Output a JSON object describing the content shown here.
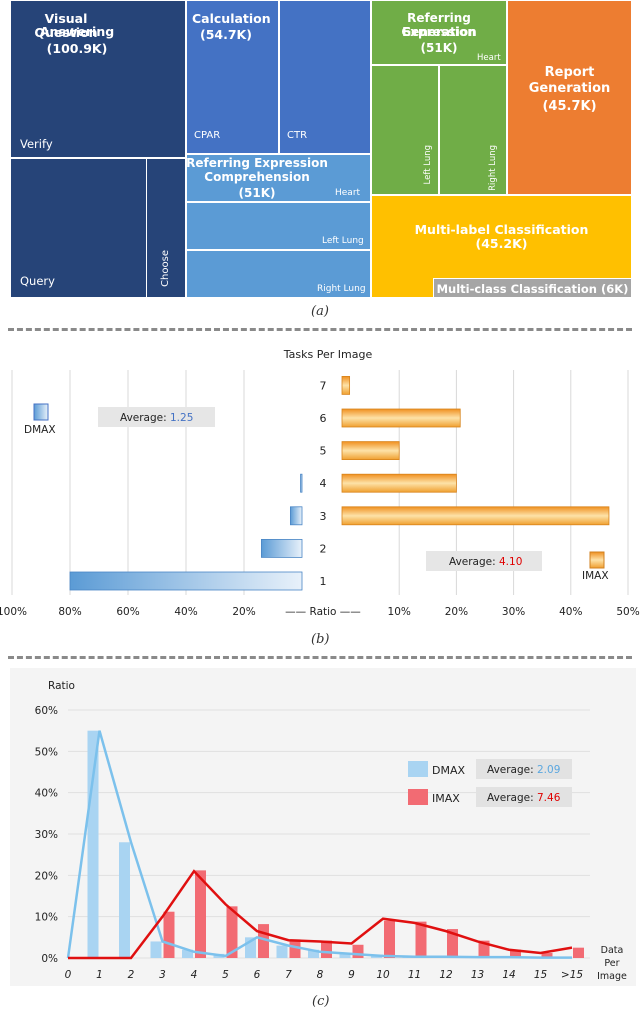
{
  "treemap": {
    "vqa": {
      "title_line1": "Visual Question",
      "title_line2": "Answering",
      "count": "(100.9K)",
      "verify": "Verify",
      "query": "Query",
      "choose": "Choose"
    },
    "calc": {
      "title": "Calculation",
      "count": "(54.7K)",
      "cpar": "CPAR",
      "ctr": "CTR"
    },
    "rec": {
      "title_line1": "Referring Expression",
      "title_line2": "Comprehension",
      "count": "(51K)",
      "heart": "Heart",
      "left_lung": "Left Lung",
      "right_lung": "Right Lung"
    },
    "reg": {
      "title_line1": "Referring Expression",
      "title_line2": "Generation",
      "count": "(51K)",
      "heart": "Heart",
      "left_lung": "Left Lung",
      "right_lung": "Right Lung"
    },
    "report": {
      "title_line1": "Report",
      "title_line2": "Generation",
      "count": "(45.7K)"
    },
    "mlc": {
      "title": "Multi-label Classification",
      "count": "(45.2K)"
    },
    "mcc": {
      "title": "Multi-class Classification (6K)"
    },
    "colors": {
      "vqa": "#264478",
      "calc": "#4472c4",
      "rec": "#5b9bd5",
      "reg": "#70ad47",
      "report": "#ed7d31",
      "mlc": "#ffc000",
      "mcc": "#a5a5a5"
    }
  },
  "captions": {
    "a": "(a)",
    "b": "(b)",
    "c": "(c)"
  },
  "chart_data": [
    {
      "type": "bar",
      "orientation": "horizontal-butterfly",
      "title": "Tasks Per Image",
      "categories": [
        "1",
        "2",
        "3",
        "4",
        "5",
        "6",
        "7"
      ],
      "series": [
        {
          "name": "DMAX",
          "side": "left",
          "values": [
            0.8,
            0.14,
            0.04,
            0.005,
            0,
            0,
            0
          ],
          "average_label": "Average: ",
          "average_value": "1.25"
        },
        {
          "name": "IMAX",
          "side": "right",
          "values": [
            0,
            0,
            0.4667,
            0.2,
            0.1,
            0.2067,
            0.0133
          ],
          "average_label": "Average: ",
          "average_value": "4.10"
        }
      ],
      "left_ticks": [
        "100%",
        "80%",
        "60%",
        "40%",
        "20%"
      ],
      "right_ticks": [
        "10%",
        "20%",
        "30%",
        "40%",
        "50%"
      ],
      "center_label": "—— Ratio ——",
      "left_xlim": [
        0,
        1.0
      ],
      "right_xlim": [
        0,
        0.5
      ],
      "colors": {
        "dmax": "#5b9bd5",
        "imax": "#f0a030",
        "avg_dmax": "#4472c4",
        "avg_imax": "#e00000"
      }
    },
    {
      "type": "bar",
      "title": "",
      "ylabel": "Ratio",
      "xlabel": "Data Per Image",
      "xlabel_lines": [
        "Data",
        "Per",
        "Image"
      ],
      "categories": [
        "0",
        "1",
        "2",
        "3",
        "4",
        "5",
        "6",
        "7",
        "8",
        "9",
        "10",
        "11",
        "12",
        "13",
        "14",
        "15",
        ">15"
      ],
      "ylim": [
        0,
        0.6
      ],
      "yticks": [
        "0%",
        "10%",
        "20%",
        "30%",
        "40%",
        "50%",
        "60%"
      ],
      "series": [
        {
          "name": "DMAX",
          "values": [
            0,
            0.55,
            0.28,
            0.04,
            0.02,
            0.01,
            0.05,
            0.03,
            0.02,
            0.01,
            0.005,
            0.003,
            0.003,
            0.002,
            0.002,
            0.001,
            0.001
          ],
          "line": [
            0,
            0.55,
            0.28,
            0.04,
            0.015,
            0.005,
            0.05,
            0.03,
            0.015,
            0.01,
            0.005,
            0.003,
            0.003,
            0.002,
            0.002,
            0.001,
            0.001
          ],
          "average_label": "Average: ",
          "average_value": "2.09"
        },
        {
          "name": "IMAX",
          "values": [
            0,
            0,
            0,
            0.112,
            0.212,
            0.125,
            0.082,
            0.045,
            0.042,
            0.032,
            0.09,
            0.088,
            0.07,
            0.042,
            0.02,
            0.012,
            0.025
          ],
          "line": [
            0,
            0,
            0,
            0.1,
            0.21,
            0.13,
            0.065,
            0.043,
            0.04,
            0.035,
            0.095,
            0.085,
            0.065,
            0.04,
            0.02,
            0.012,
            0.025
          ],
          "average_label": "Average: ",
          "average_value": "7.46"
        }
      ],
      "colors": {
        "dmax_bar": "#a9d4f2",
        "dmax_line": "#7cc1ec",
        "imax_bar": "#f26b73",
        "imax_line": "#e01010",
        "avg_dmax": "#5ba7e0",
        "avg_imax": "#e00000",
        "panel": "#f4f4f4"
      }
    }
  ]
}
